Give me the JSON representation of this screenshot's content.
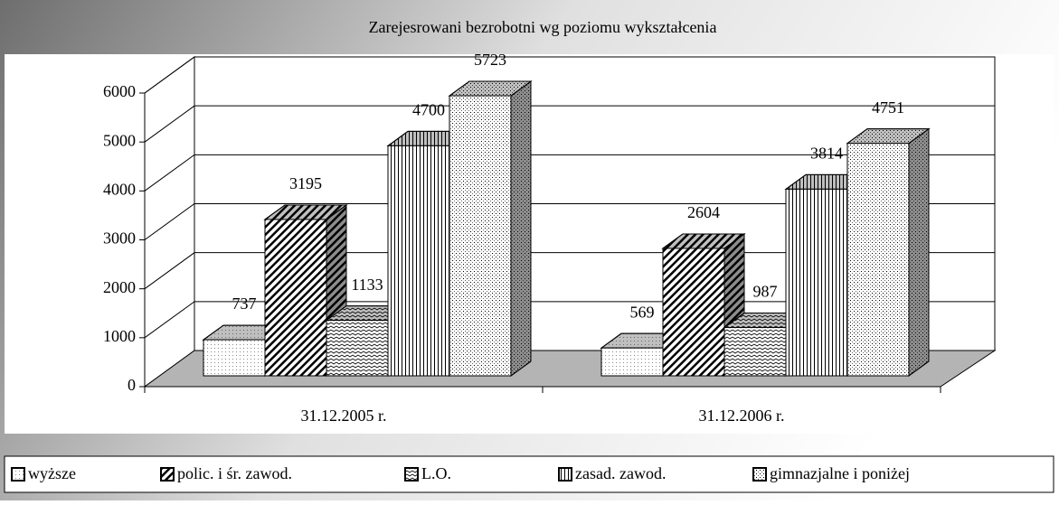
{
  "chart_data": {
    "type": "bar3d",
    "title": "Zarejesrowani bezrobotni wg poziomu wykształcenia",
    "categories": [
      "31.12.2005 r.",
      "31.12.2006 r."
    ],
    "series": [
      {
        "name": "wyższe",
        "values": [
          737,
          569
        ]
      },
      {
        "name": "polic. i śr. zawod.",
        "values": [
          3195,
          2604
        ]
      },
      {
        "name": "L.O.",
        "values": [
          1133,
          987
        ]
      },
      {
        "name": "zasad. zawod.",
        "values": [
          4700,
          3814
        ]
      },
      {
        "name": "gimnazjalne i poniżej",
        "values": [
          5723,
          4751
        ]
      }
    ],
    "ylim": [
      0,
      6000
    ],
    "yticks": [
      0,
      1000,
      2000,
      3000,
      4000,
      5000,
      6000
    ],
    "grid": true,
    "legend": "bottom"
  }
}
